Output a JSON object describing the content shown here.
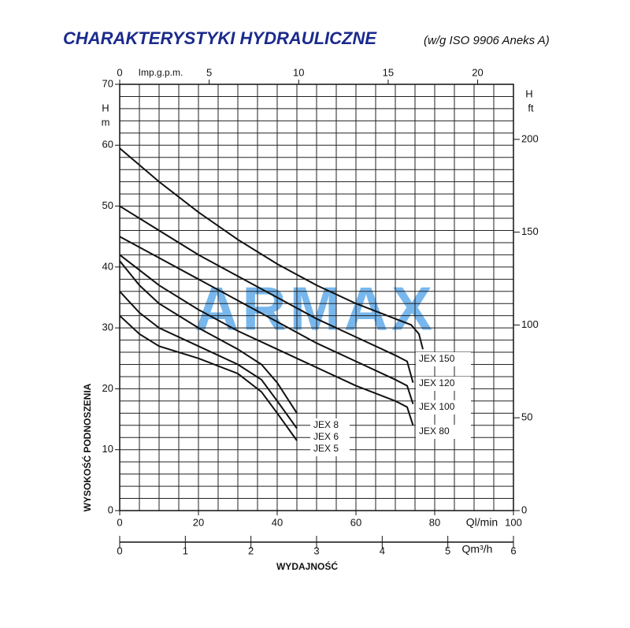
{
  "chart_data": {
    "type": "line",
    "title": "CHARAKTERYSTYKI HYDRAULICZNE",
    "subtitle": "(w/g ISO 9906 Aneks A)",
    "watermark": "ARMAX",
    "xlabel": "WYDAJNOŚĆ",
    "xunit": "Ql/min",
    "xlim": [
      0,
      100
    ],
    "xticks": [
      0,
      20,
      40,
      60,
      80,
      100
    ],
    "ylabel_title": "WYSOKOŚĆ PODNOSZENIA",
    "ylabel": "H",
    "yunit": "m",
    "ylim": [
      0,
      70
    ],
    "yticks": [
      0,
      10,
      20,
      30,
      40,
      50,
      60,
      70
    ],
    "y2label": "H",
    "y2unit": "ft",
    "y2lim": [
      0,
      229.66
    ],
    "y2ticks": [
      0,
      50,
      100,
      150,
      200
    ],
    "top_axis": {
      "unit": "Imp.g.p.m.",
      "lim": [
        0,
        22
      ],
      "ticks": [
        0,
        5,
        10,
        15,
        20
      ]
    },
    "bottom_axis2": {
      "unit": "Qm³/h",
      "lim": [
        0,
        6
      ],
      "ticks": [
        0,
        1,
        2,
        3,
        4,
        5,
        6
      ]
    },
    "grid": true,
    "grid_x_step": 5,
    "grid_y_step": 2,
    "series": [
      {
        "name": "JEX 150",
        "color": "#111111",
        "x": [
          0,
          10,
          20,
          30,
          40,
          50,
          60,
          70,
          74,
          76,
          77
        ],
        "values": [
          59.5,
          54,
          49,
          44.5,
          40.5,
          37,
          34,
          31.5,
          30.5,
          29,
          26.5
        ]
      },
      {
        "name": "JEX 120",
        "color": "#111111",
        "x": [
          0,
          10,
          20,
          30,
          40,
          50,
          60,
          70,
          73,
          74.5
        ],
        "values": [
          50,
          46,
          42,
          38.5,
          35,
          31.5,
          28.5,
          25.5,
          24.5,
          21
        ]
      },
      {
        "name": "JEX 100",
        "color": "#111111",
        "x": [
          0,
          10,
          20,
          30,
          40,
          50,
          60,
          70,
          73,
          74.5
        ],
        "values": [
          45,
          41.5,
          38,
          34.5,
          31,
          27.5,
          24.5,
          21.5,
          20.5,
          17.5
        ]
      },
      {
        "name": "JEX 80",
        "color": "#111111",
        "x": [
          0,
          5,
          10,
          20,
          30,
          40,
          50,
          60,
          70,
          73,
          74.5
        ],
        "values": [
          42,
          39.5,
          37,
          33,
          29.5,
          26.5,
          23.5,
          20.5,
          18,
          17,
          14
        ]
      },
      {
        "name": "JEX 8",
        "color": "#111111",
        "x": [
          0,
          5,
          10,
          20,
          30,
          36,
          40,
          45
        ],
        "values": [
          41,
          37,
          34,
          30,
          26.5,
          24,
          21,
          16
        ]
      },
      {
        "name": "JEX 6",
        "color": "#111111",
        "x": [
          0,
          5,
          10,
          20,
          30,
          36,
          40,
          45
        ],
        "values": [
          36,
          32.5,
          30,
          27,
          24,
          21.5,
          18,
          13.5
        ]
      },
      {
        "name": "JEX 5",
        "color": "#111111",
        "x": [
          0,
          5,
          10,
          20,
          30,
          36,
          40,
          45
        ],
        "values": [
          32,
          29,
          27,
          25,
          22.5,
          19.5,
          16,
          11.5
        ]
      }
    ]
  }
}
